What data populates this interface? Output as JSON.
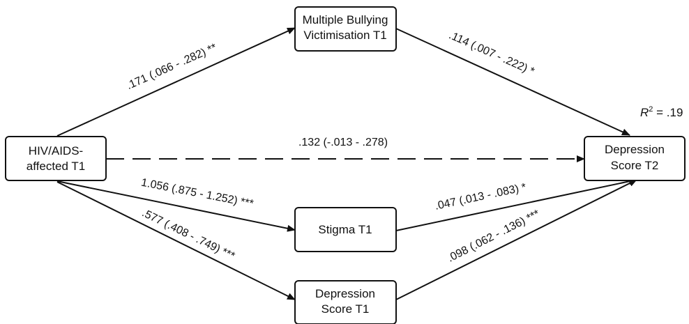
{
  "nodes": {
    "hiv": {
      "line1": "HIV/AIDS-",
      "line2": "affected T1"
    },
    "bullying": {
      "line1": "Multiple Bullying",
      "line2": "Victimisation T1"
    },
    "stigma": {
      "line1": "Stigma T1"
    },
    "depression_t1": {
      "line1": "Depression",
      "line2": "Score T1"
    },
    "depression_t2": {
      "line1": "Depression",
      "line2": "Score T2"
    }
  },
  "edges": {
    "hiv_to_bullying": ".171 (.066 - .282) **",
    "bullying_to_depression_t2": ".114 (.007 - .222) *",
    "hiv_to_depression_t2": ".132 (-.013 - .278)",
    "hiv_to_stigma": "1.056 (.875 - 1.252) ***",
    "hiv_to_depression_t1": ".577 (.408 - .749) ***",
    "stigma_to_depression_t2": ".047 (.013 - .083) *",
    "depression_t1_to_depression_t2": ".098 (.062 - .136) ***"
  },
  "r_squared": {
    "label": "R",
    "superscript": "2",
    "value": " = .19"
  },
  "colors": {
    "line": "#111111",
    "box_fill": "#ffffff"
  }
}
